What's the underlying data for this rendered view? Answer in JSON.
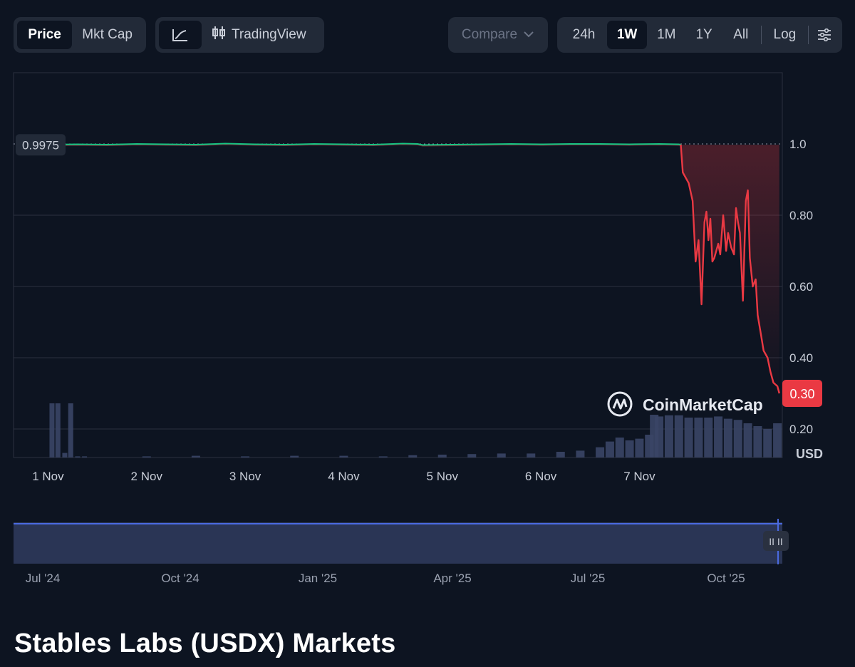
{
  "toolbar": {
    "metric_tabs": [
      "Price",
      "Mkt Cap"
    ],
    "active_metric": "Price",
    "tradingview_label": "TradingView",
    "compare_label": "Compare",
    "range_tabs": [
      "24h",
      "1W",
      "1M",
      "1Y",
      "All"
    ],
    "active_range": "1W",
    "log_label": "Log"
  },
  "colors": {
    "up": "#16c784",
    "down": "#ea3943",
    "volume": "#3a4566",
    "navigator_fill": "#2a3555",
    "navigator_line": "#4a6ae0"
  },
  "icons": [
    "line-chart-icon",
    "candlestick-icon",
    "chevron-down-icon",
    "settings-sliders-icon",
    "coinmarketcap-logo"
  ],
  "watermark": "CoinMarketCap",
  "page_title": "Stables Labs (USDX) Markets",
  "chart_data": {
    "type": "line",
    "currency": "USD",
    "ylim": [
      0.12,
      1.2
    ],
    "yticks": [
      "1.0",
      "0.80",
      "0.60",
      "0.40",
      "0.20"
    ],
    "ytick_values": [
      1.0,
      0.8,
      0.6,
      0.4,
      0.2
    ],
    "xticks": [
      "1 Nov",
      "2 Nov",
      "3 Nov",
      "4 Nov",
      "5 Nov",
      "6 Nov",
      "7 Nov"
    ],
    "open_price_label": "0.9975",
    "open_price": 0.9975,
    "last_price_label": "0.30",
    "last_price": 0.3,
    "grid": true,
    "price_series": {
      "x": [
        0.0,
        0.3,
        0.6,
        0.9,
        1.2,
        1.5,
        1.8,
        2.1,
        2.4,
        2.7,
        3.0,
        3.3,
        3.6,
        3.75,
        3.8,
        4.1,
        4.4,
        4.7,
        5.0,
        5.3,
        5.6,
        5.9,
        6.2,
        6.4,
        6.42,
        6.44,
        6.5,
        6.54,
        6.57,
        6.6,
        6.63,
        6.66,
        6.68,
        6.7,
        6.72,
        6.74,
        6.76,
        6.8,
        6.82,
        6.85,
        6.88,
        6.9,
        6.93,
        6.96,
        6.98,
        7.0,
        7.02,
        7.05,
        7.08,
        7.1,
        7.12,
        7.15,
        7.18,
        7.2,
        7.23,
        7.26,
        7.3,
        7.33,
        7.36,
        7.4,
        7.42
      ],
      "y": [
        0.998,
        0.999,
        0.998,
        1.0,
        0.999,
        0.998,
        1.001,
        0.999,
        0.998,
        1.0,
        0.999,
        0.998,
        1.001,
        1.0,
        0.997,
        0.998,
        0.999,
        1.0,
        0.999,
        1.0,
        1.0,
        0.999,
        1.0,
        0.999,
        0.998,
        0.92,
        0.89,
        0.84,
        0.67,
        0.73,
        0.55,
        0.78,
        0.81,
        0.73,
        0.79,
        0.67,
        0.68,
        0.72,
        0.69,
        0.8,
        0.7,
        0.75,
        0.71,
        0.69,
        0.82,
        0.78,
        0.75,
        0.56,
        0.84,
        0.87,
        0.68,
        0.6,
        0.62,
        0.52,
        0.47,
        0.42,
        0.4,
        0.36,
        0.33,
        0.32,
        0.3
      ]
    },
    "volume_series": {
      "x": [
        0.04,
        0.1,
        0.17,
        0.23,
        0.3,
        0.37,
        1.0,
        1.5,
        2.0,
        2.5,
        3.0,
        3.4,
        3.7,
        4.0,
        4.3,
        4.6,
        4.9,
        5.2,
        5.4,
        5.6,
        5.7,
        5.8,
        5.9,
        6.0,
        6.1,
        6.15,
        6.2,
        6.3,
        6.4,
        6.5,
        6.6,
        6.7,
        6.8,
        6.9,
        7.0,
        7.1,
        7.2,
        7.3,
        7.4
      ],
      "y": [
        0.95,
        0.95,
        0.08,
        0.95,
        0.02,
        0.02,
        0.02,
        0.03,
        0.02,
        0.03,
        0.03,
        0.02,
        0.04,
        0.05,
        0.06,
        0.07,
        0.07,
        0.1,
        0.12,
        0.18,
        0.28,
        0.35,
        0.3,
        0.33,
        0.4,
        0.75,
        0.72,
        0.74,
        0.74,
        0.7,
        0.7,
        0.7,
        0.72,
        0.68,
        0.66,
        0.6,
        0.55,
        0.5,
        0.6
      ]
    },
    "navigator": {
      "xticks": [
        "Jul '24",
        "Oct '24",
        "Jan '25",
        "Apr '25",
        "Jul '25",
        "Oct '25"
      ],
      "handle_label": "II II"
    }
  }
}
